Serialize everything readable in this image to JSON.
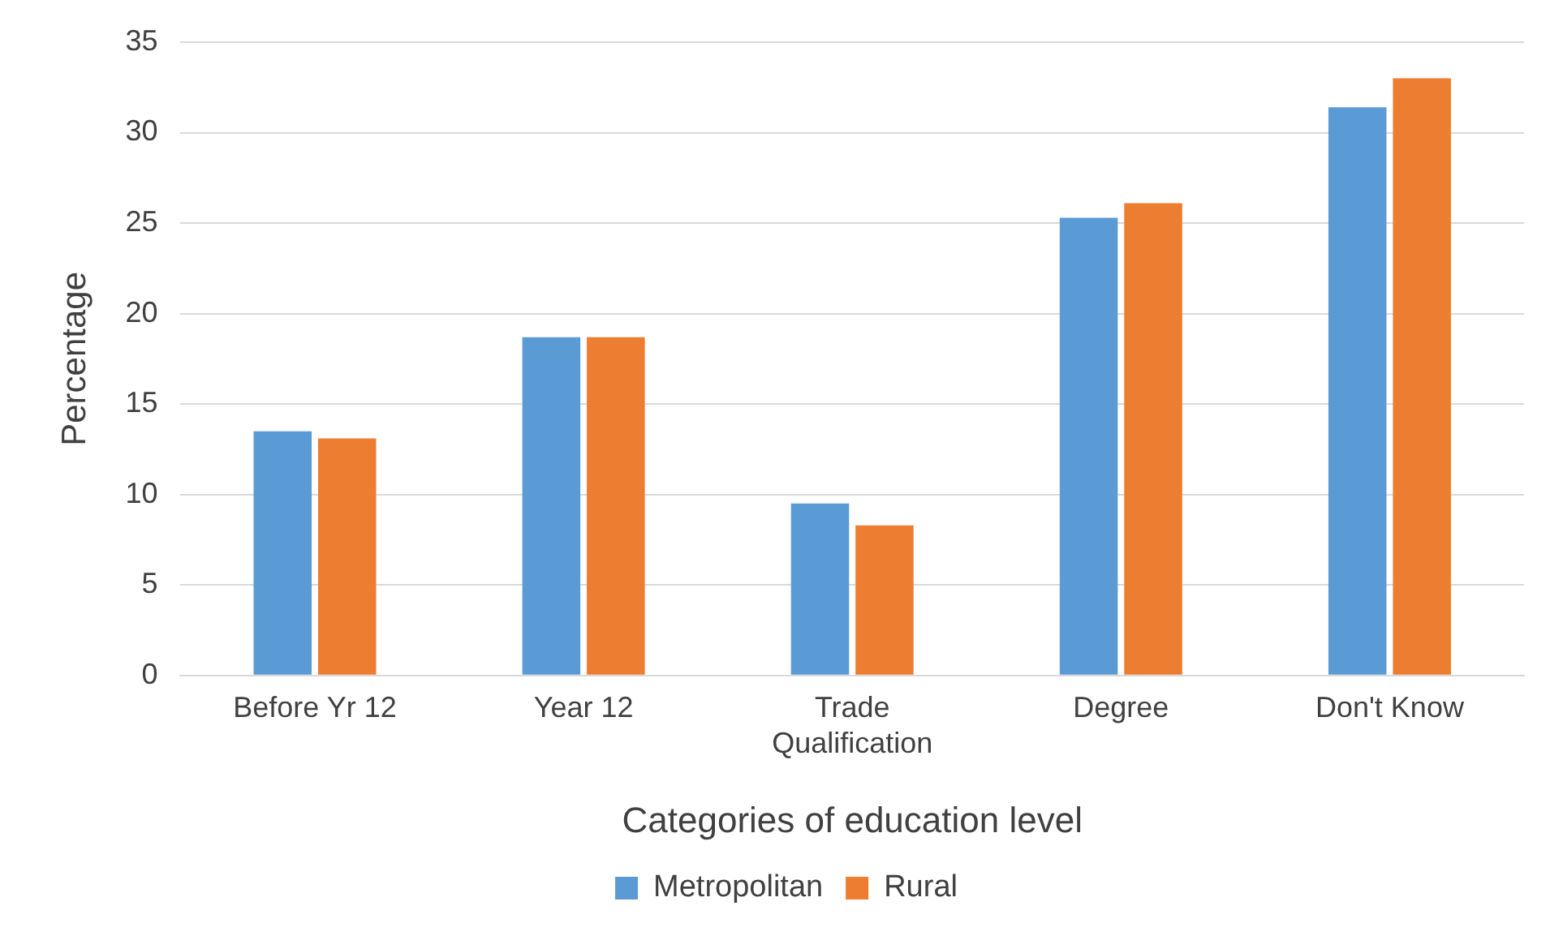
{
  "chart_data": {
    "type": "bar",
    "xlabel": "Categories of education level",
    "ylabel": "Percentage",
    "categories": [
      "Before Yr 12",
      "Year 12",
      "Trade Qualification",
      "Degree",
      "Don't Know"
    ],
    "series": [
      {
        "name": "Metropolitan",
        "color": "#5b9bd5",
        "values": [
          13.5,
          18.7,
          9.5,
          25.3,
          31.4
        ]
      },
      {
        "name": "Rural",
        "color": "#ed7d31",
        "values": [
          13.1,
          18.7,
          8.3,
          26.1,
          33.0
        ]
      }
    ],
    "ylim": [
      0,
      35
    ],
    "yticks": [
      0,
      5,
      10,
      15,
      20,
      25,
      30,
      35
    ],
    "grid": "y",
    "legend": "bottom"
  }
}
